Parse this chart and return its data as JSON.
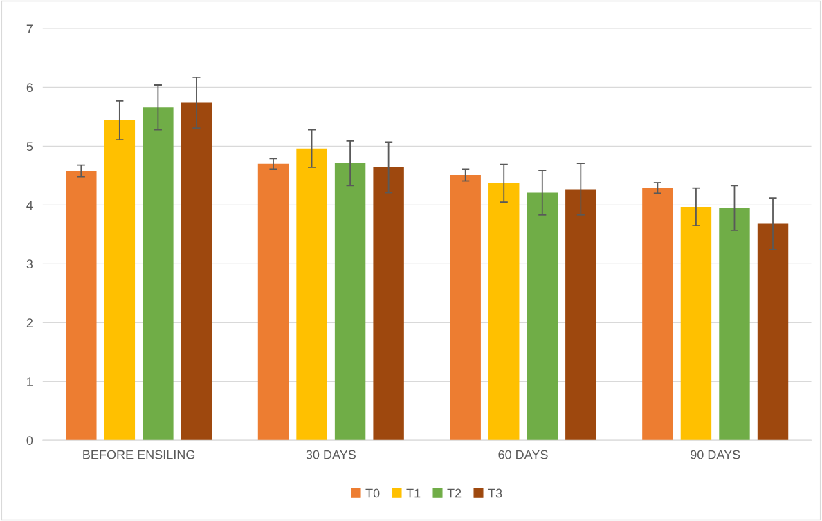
{
  "chart_data": {
    "type": "bar",
    "categories": [
      "BEFORE ENSILING",
      "30 DAYS",
      "60 DAYS",
      "90 DAYS"
    ],
    "series": [
      {
        "name": "T0",
        "color": "#ed7d31",
        "values": [
          4.58,
          4.7,
          4.51,
          4.29
        ],
        "errors": [
          0.1,
          0.09,
          0.1,
          0.09
        ]
      },
      {
        "name": "T1",
        "color": "#ffc000",
        "values": [
          5.44,
          4.96,
          4.37,
          3.97
        ],
        "errors": [
          0.33,
          0.32,
          0.32,
          0.32
        ]
      },
      {
        "name": "T2",
        "color": "#70ad47",
        "values": [
          5.66,
          4.71,
          4.21,
          3.95
        ],
        "errors": [
          0.38,
          0.38,
          0.38,
          0.38
        ]
      },
      {
        "name": "T3",
        "color": "#9e480e",
        "values": [
          5.74,
          4.64,
          4.27,
          3.68
        ],
        "errors": [
          0.43,
          0.43,
          0.44,
          0.44
        ]
      }
    ],
    "ylim": [
      0,
      7
    ],
    "yticks": [
      0,
      1,
      2,
      3,
      4,
      5,
      6,
      7
    ],
    "grid": "y",
    "legend": "bottom"
  }
}
